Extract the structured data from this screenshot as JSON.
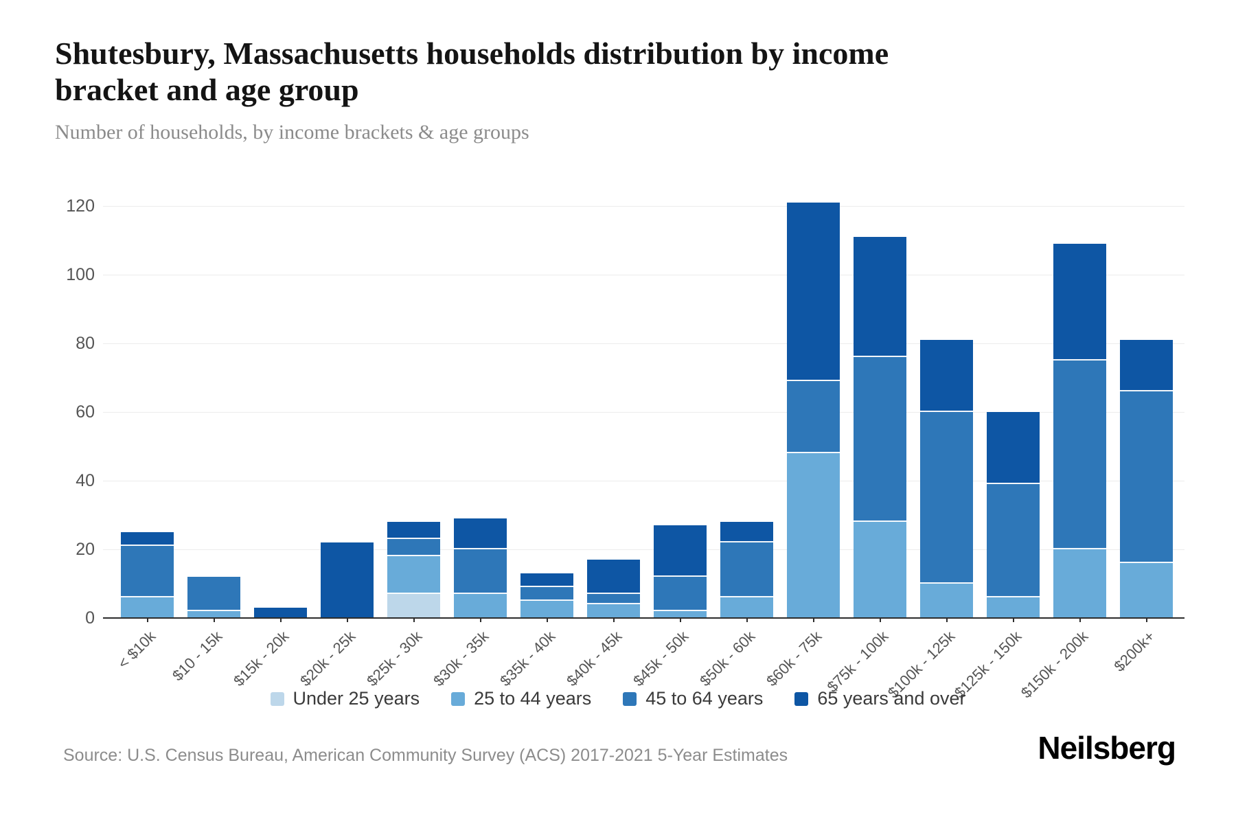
{
  "header": {
    "title_line1": "Shutesbury, Massachusetts households distribution by income",
    "title_line2": "bracket and age group",
    "subtitle": "Number of households, by income brackets & age groups"
  },
  "chart_data": {
    "type": "bar",
    "stacked": true,
    "title": "Shutesbury, Massachusetts households distribution by income bracket and age group",
    "subtitle": "Number of households, by income brackets & age groups",
    "xlabel": "",
    "ylabel": "Number of households",
    "ylim": [
      0,
      120
    ],
    "yticks": [
      0,
      20,
      40,
      60,
      80,
      100,
      120
    ],
    "grid": true,
    "legend_position": "bottom",
    "categories": [
      "< $10k",
      "$10 - 15k",
      "$15k - 20k",
      "$20k - 25k",
      "$25k - 30k",
      "$30k - 35k",
      "$35k - 40k",
      "$40k - 45k",
      "$45k - 50k",
      "$50k - 60k",
      "$60k - 75k",
      "$75k - 100k",
      "$100k - 125k",
      "$125k - 150k",
      "$150k - 200k",
      "$200k+"
    ],
    "series": [
      {
        "name": "Under 25 years",
        "color": "#bdd7ea",
        "values": [
          0,
          0,
          0,
          0,
          7,
          0,
          0,
          0,
          0,
          0,
          0,
          0,
          0,
          0,
          0,
          0
        ]
      },
      {
        "name": "25 to 44 years",
        "color": "#68abd9",
        "values": [
          6,
          2,
          0,
          0,
          11,
          7,
          5,
          4,
          2,
          6,
          48,
          28,
          10,
          6,
          20,
          16
        ]
      },
      {
        "name": "45 to 64 years",
        "color": "#2e77b8",
        "values": [
          15,
          10,
          0,
          0,
          5,
          13,
          4,
          3,
          10,
          16,
          21,
          48,
          50,
          33,
          55,
          50
        ]
      },
      {
        "name": "65 years and over",
        "color": "#0e56a4",
        "values": [
          4,
          0,
          3,
          22,
          5,
          9,
          4,
          10,
          15,
          6,
          52,
          35,
          21,
          21,
          34,
          15
        ]
      }
    ],
    "totals": [
      25,
      12,
      3,
      22,
      28,
      29,
      13,
      17,
      27,
      28,
      121,
      111,
      81,
      60,
      109,
      81
    ]
  },
  "footer": {
    "source": "Source: U.S. Census Bureau, American Community Survey (ACS) 2017-2021 5-Year Estimates",
    "brand": "Neilsberg"
  }
}
